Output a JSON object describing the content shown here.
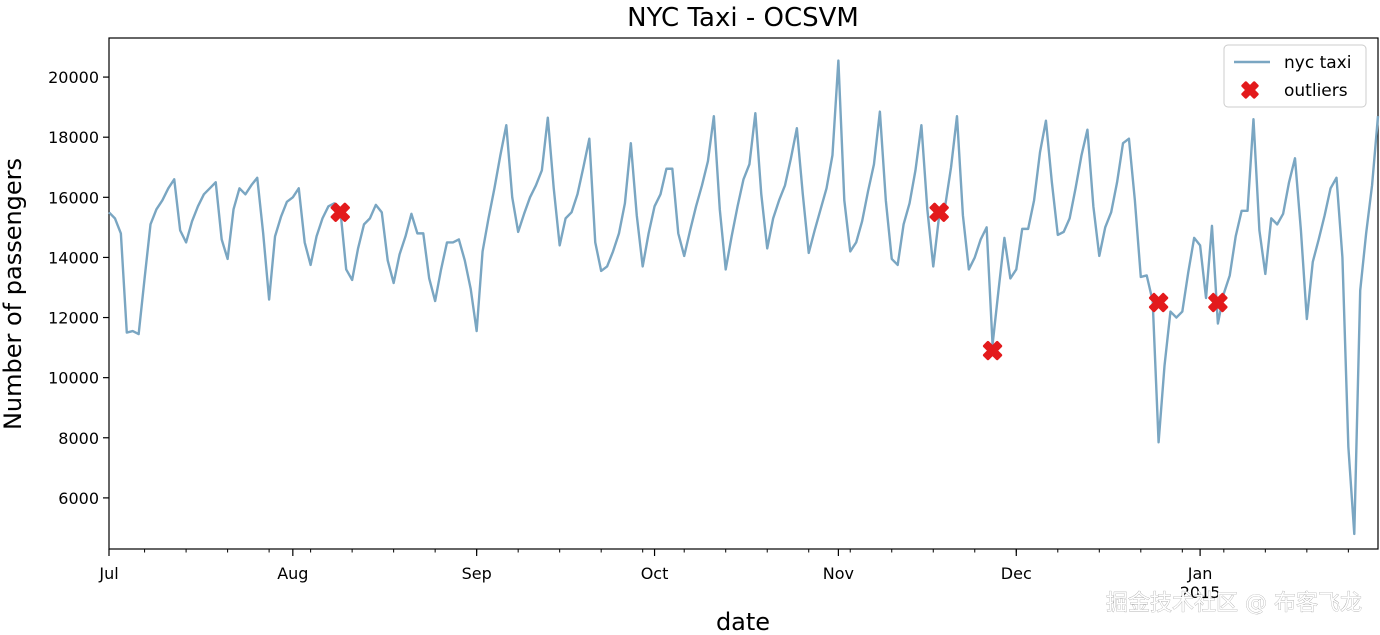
{
  "chart_data": {
    "type": "line",
    "title": "NYC Taxi - OCSVM",
    "xlabel": "date",
    "ylabel": "Number of passengers",
    "x_range": [
      "2014-07-01",
      "2015-01-31"
    ],
    "ylim": [
      4300,
      21300
    ],
    "y_ticks": [
      6000,
      8000,
      10000,
      12000,
      14000,
      16000,
      18000,
      20000
    ],
    "x_ticks": [
      {
        "date": "2014-07-01",
        "label": "Jul"
      },
      {
        "date": "2014-08-01",
        "label": "Aug"
      },
      {
        "date": "2014-09-01",
        "label": "Sep"
      },
      {
        "date": "2014-10-01",
        "label": "Oct"
      },
      {
        "date": "2014-11-01",
        "label": "Nov"
      },
      {
        "date": "2014-12-01",
        "label": "Dec"
      },
      {
        "date": "2015-01-01",
        "label": "Jan",
        "sublabel": "2015"
      }
    ],
    "legend_position": "top-right",
    "grid": false,
    "series": [
      {
        "name": "nyc taxi",
        "kind": "line",
        "color": "#7aa6c2",
        "start_date": "2014-07-01",
        "step_days": 1,
        "values": [
          15500,
          15300,
          14800,
          11500,
          11550,
          11450,
          13300,
          15100,
          15600,
          15900,
          16300,
          16600,
          14900,
          14500,
          15200,
          15700,
          16100,
          16300,
          16500,
          14600,
          13950,
          15600,
          16300,
          16100,
          16400,
          16650,
          14800,
          12600,
          14700,
          15350,
          15850,
          16000,
          16300,
          14500,
          13750,
          14700,
          15300,
          15700,
          15800,
          15600,
          13600,
          13250,
          14300,
          15100,
          15300,
          15750,
          15500,
          13900,
          13150,
          14100,
          14700,
          15450,
          14800,
          14800,
          13300,
          12550,
          13600,
          14500,
          14500,
          14600,
          13900,
          12950,
          11550,
          14200,
          15300,
          16300,
          17400,
          18400,
          16000,
          14850,
          15450,
          16000,
          16400,
          16900,
          18650,
          16300,
          14400,
          15300,
          15500,
          16100,
          17000,
          17950,
          14500,
          13550,
          13700,
          14200,
          14800,
          15800,
          17800,
          15400,
          13700,
          14800,
          15700,
          16100,
          16950,
          16950,
          14800,
          14050,
          14900,
          15700,
          16400,
          17200,
          18700,
          15600,
          13600,
          14700,
          15700,
          16600,
          17100,
          18800,
          16100,
          14300,
          15300,
          15900,
          16400,
          17300,
          18300,
          16100,
          14150,
          14900,
          15600,
          16300,
          17400,
          20550,
          15900,
          14200,
          14500,
          15200,
          16200,
          17100,
          18850,
          15900,
          13950,
          13750,
          15100,
          15800,
          16900,
          18400,
          15600,
          13700,
          15400,
          15700,
          17000,
          18700,
          15400,
          13600,
          14000,
          14600,
          15000,
          11100,
          12900,
          14650,
          13300,
          13600,
          14950,
          14950,
          15900,
          17500,
          18550,
          16500,
          14750,
          14850,
          15300,
          16300,
          17400,
          18250,
          15700,
          14050,
          15000,
          15500,
          16500,
          17800,
          17950,
          15900,
          13350,
          13400,
          12550,
          7850,
          10400,
          12200,
          12000,
          12200,
          13500,
          14650,
          14400,
          12650,
          15050,
          11800,
          12800,
          13400,
          14700,
          15550,
          15550,
          18600,
          14900,
          13450,
          15300,
          15100,
          15450,
          16500,
          17300,
          14900,
          11950,
          13850,
          14600,
          15400,
          16300,
          16650,
          14000,
          7700,
          4800,
          12900,
          14800,
          16400,
          18700
        ]
      },
      {
        "name": "outliers",
        "kind": "scatter",
        "color": "#e31a1c",
        "marker": "X",
        "points": [
          {
            "date": "2014-08-09",
            "value": 15500
          },
          {
            "date": "2014-11-18",
            "value": 15500
          },
          {
            "date": "2014-11-27",
            "value": 10900
          },
          {
            "date": "2014-12-25",
            "value": 12500
          },
          {
            "date": "2015-01-04",
            "value": 12500
          }
        ]
      }
    ]
  },
  "watermark": {
    "text": "掘金技术社区 @ 布客飞龙"
  }
}
